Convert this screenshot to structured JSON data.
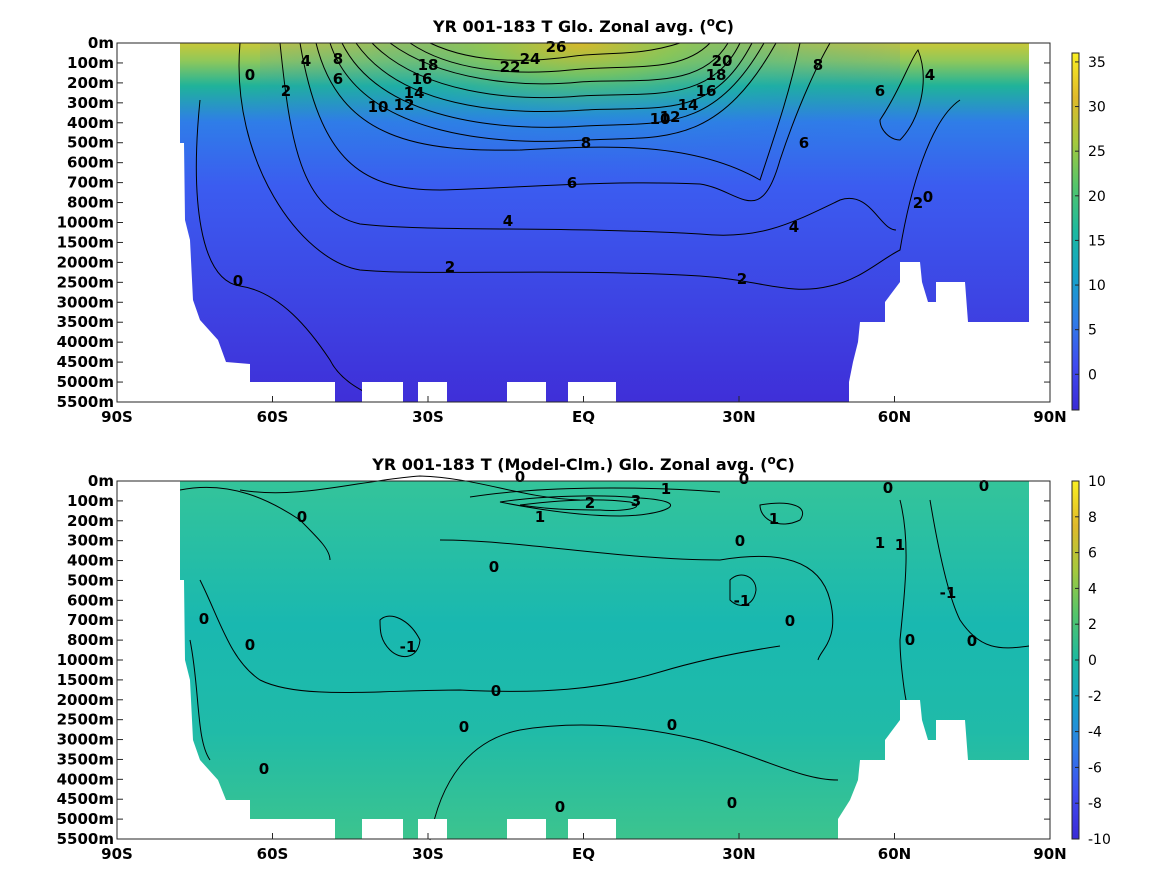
{
  "chart_data": [
    {
      "type": "heatmap",
      "title": "YR 001-183 T Glo. Zonal avg. (",
      "title_sup": "o",
      "title_end": "C)",
      "x_ticks": [
        "90S",
        "60S",
        "30S",
        "EQ",
        "30N",
        "60N",
        "90N"
      ],
      "y_ticks": [
        "0m",
        "100m",
        "200m",
        "300m",
        "400m",
        "500m",
        "600m",
        "700m",
        "800m",
        "1000m",
        "1500m",
        "2000m",
        "2500m",
        "3000m",
        "3500m",
        "4000m",
        "4500m",
        "5000m",
        "5500m"
      ],
      "colorbar_ticks": [
        "35",
        "30",
        "25",
        "20",
        "15",
        "10",
        "5",
        "0"
      ],
      "colorbar_range": [
        -4,
        36
      ],
      "colormap": [
        "#3a2ad6",
        "#3f4bf0",
        "#2f7de8",
        "#14a3c8",
        "#1cb9a0",
        "#52c56c",
        "#a5c93d",
        "#e0b92a",
        "#f9ef22"
      ],
      "contour_labels": [
        "26",
        "24",
        "22",
        "20",
        "18",
        "18",
        "16",
        "16",
        "14",
        "14",
        "12",
        "12",
        "10",
        "10",
        "8",
        "8",
        "8",
        "6",
        "6",
        "6",
        "6",
        "4",
        "4",
        "4",
        "4",
        "2",
        "2",
        "2",
        "2",
        "0",
        "0",
        "0"
      ]
    },
    {
      "type": "heatmap",
      "title": "YR 001-183 T (Model-Clm.) Glo. Zonal avg. (",
      "title_sup": "o",
      "title_end": "C)",
      "x_ticks": [
        "90S",
        "60S",
        "30S",
        "EQ",
        "30N",
        "60N",
        "90N"
      ],
      "y_ticks": [
        "0m",
        "100m",
        "200m",
        "300m",
        "400m",
        "500m",
        "600m",
        "700m",
        "800m",
        "1000m",
        "1500m",
        "2000m",
        "2500m",
        "3000m",
        "3500m",
        "4000m",
        "4500m",
        "5000m",
        "5500m"
      ],
      "colorbar_ticks": [
        "10",
        "8",
        "6",
        "4",
        "2",
        "0",
        "-2",
        "-4",
        "-6",
        "-8",
        "-10"
      ],
      "colorbar_range": [
        -10,
        10
      ],
      "colormap": [
        "#3a2ad6",
        "#3f4bf0",
        "#2f7de8",
        "#14a3c8",
        "#1cb9a0",
        "#52c56c",
        "#a5c93d",
        "#e0b92a",
        "#f9ef22"
      ],
      "contour_labels": [
        "0",
        "1",
        "0",
        "0",
        "0",
        "2",
        "3",
        "1",
        "1",
        "0",
        "1",
        "1",
        "0",
        "0",
        "-1",
        "-1",
        "0",
        "0",
        "-1",
        "0",
        "0",
        "0",
        "0",
        "0",
        "0",
        "0",
        "0",
        "0"
      ]
    }
  ]
}
